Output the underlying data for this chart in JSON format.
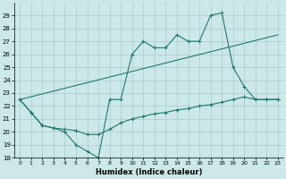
{
  "bg_color": "#cce8e8",
  "grid_color": "#aacccc",
  "line_color": "#1f7872",
  "xlabel": "Humidex (Indice chaleur)",
  "xlim": [
    -0.5,
    23.5
  ],
  "ylim": [
    18,
    30
  ],
  "xticks": [
    0,
    1,
    2,
    3,
    4,
    5,
    6,
    7,
    8,
    9,
    10,
    11,
    12,
    13,
    14,
    15,
    16,
    17,
    18,
    19,
    20,
    21,
    22,
    23
  ],
  "yticks": [
    18,
    19,
    20,
    21,
    22,
    23,
    24,
    25,
    26,
    27,
    28,
    29
  ],
  "line1_x": [
    0,
    1,
    2,
    3,
    4,
    5,
    6,
    7,
    8,
    9,
    10,
    11,
    12,
    13,
    14,
    15,
    16,
    17,
    18,
    19,
    20,
    21,
    22,
    23
  ],
  "line1_y": [
    22.5,
    21.5,
    20.5,
    20.3,
    20.0,
    19.0,
    18.5,
    18.0,
    22.5,
    22.5,
    26.0,
    27.0,
    26.5,
    26.5,
    27.5,
    27.0,
    27.0,
    29.0,
    29.2,
    25.0,
    23.5,
    22.5,
    22.5,
    22.5
  ],
  "line2_x": [
    0,
    23
  ],
  "line2_y": [
    22.5,
    27.5
  ],
  "line3_x": [
    0,
    1,
    2,
    3,
    4,
    5,
    6,
    7,
    8,
    9,
    10,
    11,
    12,
    13,
    14,
    15,
    16,
    17,
    18,
    19,
    20,
    21,
    22,
    23
  ],
  "line3_y": [
    22.5,
    21.5,
    20.5,
    20.3,
    20.2,
    20.1,
    19.8,
    19.8,
    20.2,
    20.7,
    21.0,
    21.2,
    21.4,
    21.5,
    21.7,
    21.8,
    22.0,
    22.1,
    22.3,
    22.5,
    22.7,
    22.5,
    22.5,
    22.5
  ]
}
